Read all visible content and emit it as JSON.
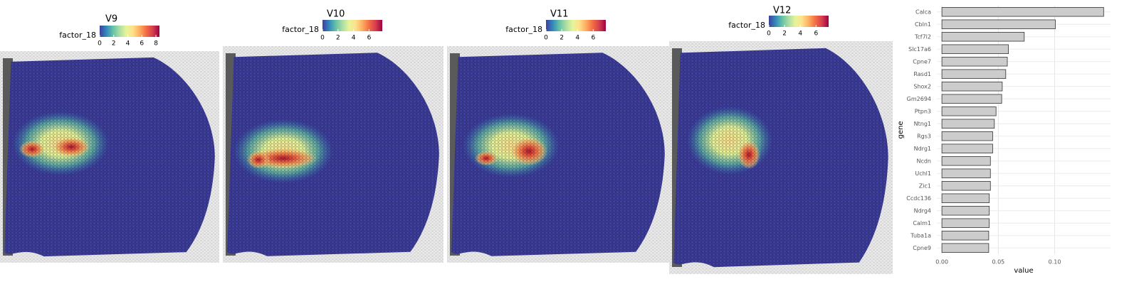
{
  "chart_data": [
    {
      "type": "spatial",
      "title": "V9",
      "legend_title": "factor_18",
      "colorbar_lim": [
        0,
        8.5
      ],
      "colorbar_ticks": [
        0,
        2,
        4,
        6,
        8
      ],
      "colormap": [
        "#3f3f9c",
        "#3288bd",
        "#66c2a5",
        "#abdda4",
        "#e6f598",
        "#fee08b",
        "#fdae61",
        "#f46d43",
        "#d53e4f",
        "#9e0142"
      ]
    },
    {
      "type": "spatial",
      "title": "V10",
      "legend_title": "factor_18",
      "colorbar_lim": [
        0,
        7.7
      ],
      "colorbar_ticks": [
        0,
        2,
        4,
        6
      ],
      "colormap": [
        "#3f3f9c",
        "#3288bd",
        "#66c2a5",
        "#abdda4",
        "#e6f598",
        "#fee08b",
        "#fdae61",
        "#f46d43",
        "#d53e4f",
        "#9e0142"
      ]
    },
    {
      "type": "spatial",
      "title": "V11",
      "legend_title": "factor_18",
      "colorbar_lim": [
        0,
        7.6
      ],
      "colorbar_ticks": [
        0,
        2,
        4,
        6
      ],
      "colormap": [
        "#3f3f9c",
        "#3288bd",
        "#66c2a5",
        "#abdda4",
        "#e6f598",
        "#fee08b",
        "#fdae61",
        "#f46d43",
        "#d53e4f",
        "#9e0142"
      ]
    },
    {
      "type": "spatial",
      "title": "V12",
      "legend_title": "factor_18",
      "colorbar_lim": [
        0,
        7.6
      ],
      "colorbar_ticks": [
        0,
        2,
        4,
        6
      ],
      "colormap": [
        "#3f3f9c",
        "#3288bd",
        "#66c2a5",
        "#abdda4",
        "#e6f598",
        "#fee08b",
        "#fdae61",
        "#f46d43",
        "#d53e4f",
        "#9e0142"
      ]
    },
    {
      "type": "bar",
      "orientation": "horizontal",
      "categories": [
        "Calca",
        "Cbln1",
        "Tcf7l2",
        "Slc17a6",
        "Cpne7",
        "Rasd1",
        "Shox2",
        "Gm2694",
        "Ptpn3",
        "Ntng1",
        "Rgs3",
        "Ndrg1",
        "Ncdn",
        "Uchl1",
        "Zic1",
        "Ccdc136",
        "Ndrg4",
        "Calm1",
        "Tuba1a",
        "Cpne9"
      ],
      "values": [
        0.1434,
        0.1006,
        0.073,
        0.059,
        0.058,
        0.0566,
        0.0535,
        0.053,
        0.048,
        0.0465,
        0.045,
        0.045,
        0.043,
        0.043,
        0.043,
        0.042,
        0.042,
        0.042,
        0.0415,
        0.0415
      ],
      "color": "#cccccc",
      "xlim": [
        -0.0045,
        0.1495
      ],
      "xticks": [
        {
          "value": 0,
          "label": "0.00"
        },
        0.05,
        {
          "value": 0.1,
          "label": "0.10"
        }
      ],
      "xlabel": "value",
      "ylabel": "gene",
      "grid": true
    }
  ]
}
